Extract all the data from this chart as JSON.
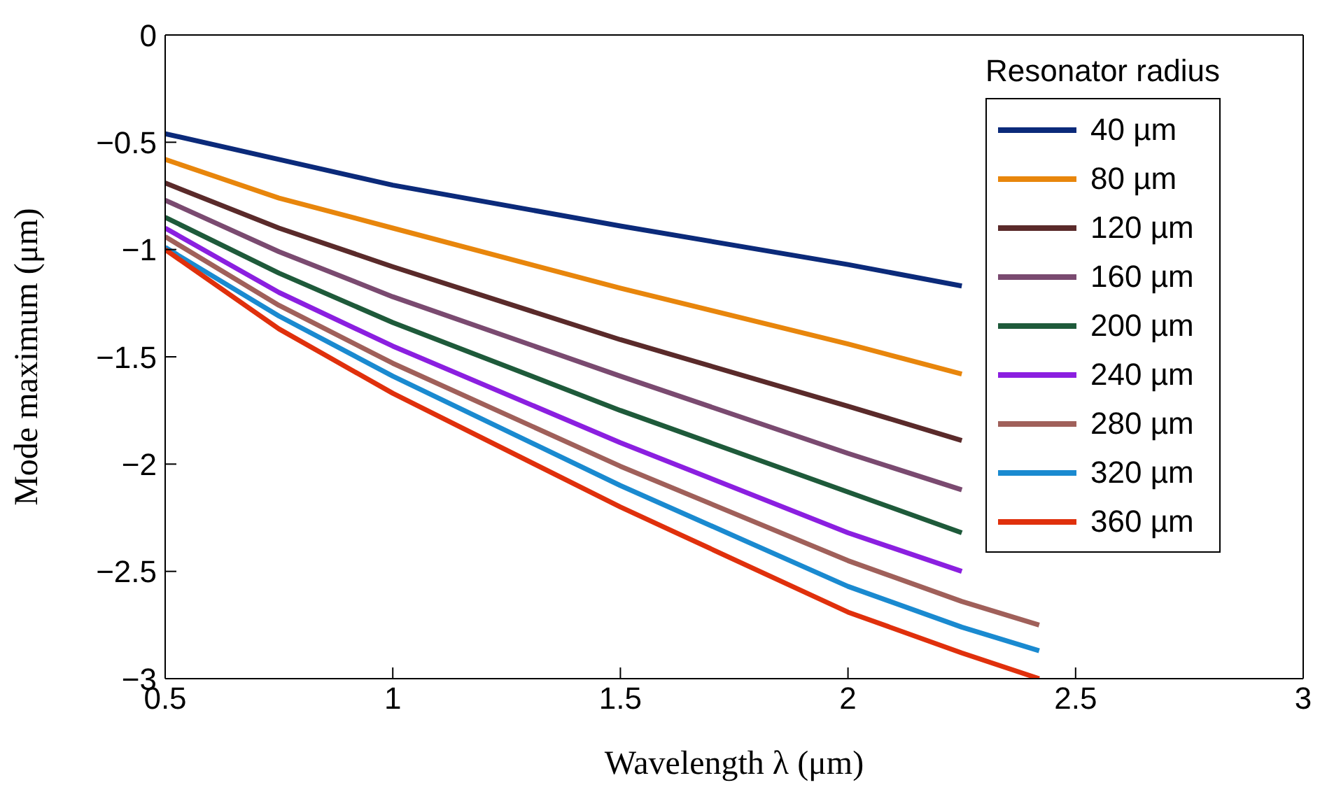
{
  "chart_data": {
    "type": "line",
    "xlabel": "Wavelength λ (μm)",
    "ylabel": "Mode maximum (μm)",
    "legend_title": "Resonator radius",
    "legend": "top right",
    "grid": false,
    "marker": "none",
    "line_style": "solid",
    "x": [
      0.5,
      0.75,
      1,
      1.5,
      2,
      2.25,
      2.42
    ],
    "xlim": [
      0.5,
      3
    ],
    "xticks": [
      0.5,
      1,
      1.5,
      2,
      2.5,
      3
    ],
    "ylim": [
      -3,
      0
    ],
    "yticks": [
      {
        "value": -3,
        "label": "−3"
      },
      {
        "value": -2.5,
        "label": "−2.5"
      },
      {
        "value": -2,
        "label": "−2"
      },
      {
        "value": -1.5,
        "label": "−1.5"
      },
      {
        "value": -1,
        "label": "−1"
      },
      {
        "value": -0.5,
        "label": "−0.5"
      },
      0
    ],
    "series": [
      {
        "name": "40 µm",
        "color": "#0b2a7a",
        "values": [
          -0.46,
          -0.58,
          -0.7,
          -0.89,
          -1.07,
          -1.17,
          null
        ]
      },
      {
        "name": "80 µm",
        "color": "#e8860c",
        "values": [
          -0.58,
          -0.76,
          -0.9,
          -1.18,
          -1.44,
          -1.58,
          null
        ]
      },
      {
        "name": "120 µm",
        "color": "#5a2a2a",
        "values": [
          -0.69,
          -0.9,
          -1.08,
          -1.42,
          -1.73,
          -1.89,
          null
        ]
      },
      {
        "name": "160 µm",
        "color": "#7a4a70",
        "values": [
          -0.77,
          -1.01,
          -1.22,
          -1.59,
          -1.95,
          -2.12,
          null
        ]
      },
      {
        "name": "200 µm",
        "color": "#1e5a3a",
        "values": [
          -0.85,
          -1.11,
          -1.34,
          -1.75,
          -2.13,
          -2.32,
          null
        ]
      },
      {
        "name": "240 µm",
        "color": "#8b1fe0",
        "values": [
          -0.9,
          -1.2,
          -1.45,
          -1.9,
          -2.32,
          -2.5,
          null
        ]
      },
      {
        "name": "280 µm",
        "color": "#a0605a",
        "values": [
          -0.94,
          -1.26,
          -1.53,
          -2.01,
          -2.45,
          -2.64,
          -2.75
        ]
      },
      {
        "name": "320 µm",
        "color": "#1a8ad0",
        "values": [
          -0.99,
          -1.31,
          -1.59,
          -2.1,
          -2.57,
          -2.76,
          -2.87
        ]
      },
      {
        "name": "360 µm",
        "color": "#e0300c",
        "values": [
          -1.0,
          -1.37,
          -1.67,
          -2.2,
          -2.69,
          -2.88,
          -3.0
        ]
      }
    ]
  }
}
